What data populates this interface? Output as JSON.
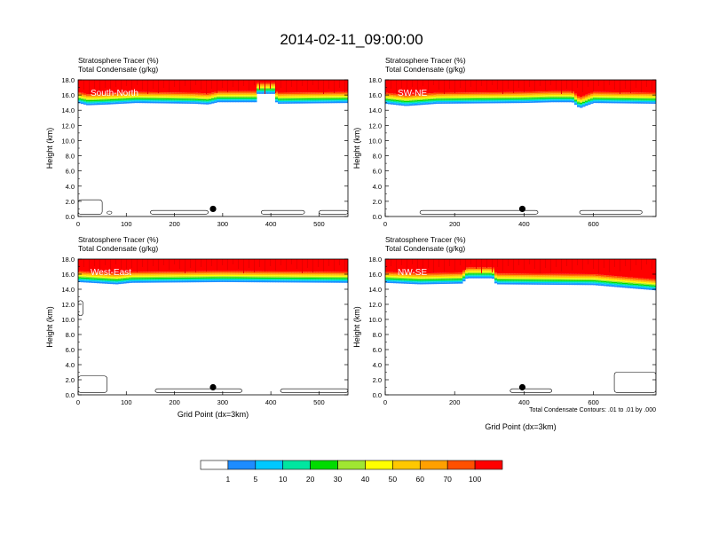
{
  "figure": {
    "title": "2014-02-11_09:00:00",
    "footnote": "Total Condensate Contours: .01 to .01 by .000"
  },
  "colors": {
    "tracer_levels": [
      1,
      5,
      10,
      20,
      30,
      40,
      50,
      60,
      70,
      100
    ],
    "tracer_fill": [
      "#ffffff",
      "#1e8cff",
      "#00c8ff",
      "#00e6a0",
      "#00dc00",
      "#a0e632",
      "#ffff00",
      "#ffc800",
      "#ffa000",
      "#ff5000",
      "#ff0000"
    ]
  },
  "colorbar": {
    "labels": [
      "1",
      "5",
      "10",
      "20",
      "30",
      "40",
      "50",
      "60",
      "70",
      "100"
    ]
  },
  "chart_data": [
    {
      "type": "heatmap",
      "panel": "South-North",
      "title_line1": "Stratosphere Tracer   (%)",
      "title_line2": "Total Condensate   (g/kg)",
      "ylabel": "Height (km)",
      "xlabel": "",
      "xlim": [
        0,
        560
      ],
      "ylim": [
        0,
        18
      ],
      "xticks": [
        0,
        100,
        200,
        300,
        400,
        500
      ],
      "yticks": [
        "0.0",
        "2.0",
        "4.0",
        "6.0",
        "8.0",
        "10.0",
        "12.0",
        "14.0",
        "16.0",
        "18.0"
      ],
      "tropopause_km": [
        [
          0,
          15.3
        ],
        [
          20,
          15.0
        ],
        [
          60,
          15.1
        ],
        [
          120,
          15.3
        ],
        [
          240,
          15.2
        ],
        [
          270,
          15.1
        ],
        [
          290,
          15.4
        ],
        [
          370,
          15.4
        ],
        [
          372,
          16.5
        ],
        [
          410,
          16.5
        ],
        [
          412,
          15.2
        ],
        [
          560,
          15.3
        ]
      ],
      "marker": {
        "x": 280,
        "y": 1.0
      },
      "condensate_contours": [
        {
          "x0": 0,
          "x1": 50,
          "y0": 0.3,
          "y1": 2.2
        },
        {
          "x0": 60,
          "x1": 70,
          "y0": 0.3,
          "y1": 0.7
        },
        {
          "x0": 150,
          "x1": 270,
          "y0": 0.3,
          "y1": 0.8
        },
        {
          "x0": 380,
          "x1": 470,
          "y0": 0.3,
          "y1": 0.8
        },
        {
          "x0": 500,
          "x1": 560,
          "y0": 0.3,
          "y1": 0.8
        }
      ]
    },
    {
      "type": "heatmap",
      "panel": "SW-NE",
      "title_line1": "Stratosphere Tracer   (%)",
      "title_line2": "Total Condensate   (g/kg)",
      "ylabel": "Height (km)",
      "xlabel": "",
      "xlim": [
        0,
        780
      ],
      "ylim": [
        0,
        18
      ],
      "xticks": [
        0,
        200,
        400,
        600
      ],
      "yticks": [
        "0.0",
        "2.0",
        "4.0",
        "6.0",
        "8.0",
        "10.0",
        "12.0",
        "14.0",
        "16.0",
        "18.0"
      ],
      "tropopause_km": [
        [
          0,
          15.2
        ],
        [
          60,
          14.9
        ],
        [
          150,
          15.2
        ],
        [
          400,
          15.3
        ],
        [
          480,
          15.4
        ],
        [
          540,
          15.4
        ],
        [
          560,
          14.6
        ],
        [
          600,
          15.3
        ],
        [
          780,
          15.2
        ]
      ],
      "marker": {
        "x": 395,
        "y": 1.0
      },
      "condensate_contours": [
        {
          "x0": 100,
          "x1": 440,
          "y0": 0.3,
          "y1": 0.8
        },
        {
          "x0": 560,
          "x1": 740,
          "y0": 0.3,
          "y1": 0.8
        }
      ]
    },
    {
      "type": "heatmap",
      "panel": "West-East",
      "title_line1": "Stratosphere Tracer   (%)",
      "title_line2": "Total Condensate   (g/kg)",
      "ylabel": "Height (km)",
      "xlabel": "Grid Point (dx=3km)",
      "xlim": [
        0,
        560
      ],
      "ylim": [
        0,
        18
      ],
      "xticks": [
        0,
        100,
        200,
        300,
        400,
        500
      ],
      "yticks": [
        "0.0",
        "2.0",
        "4.0",
        "6.0",
        "8.0",
        "10.0",
        "12.0",
        "14.0",
        "16.0",
        "18.0"
      ],
      "tropopause_km": [
        [
          0,
          15.3
        ],
        [
          80,
          15.0
        ],
        [
          110,
          15.2
        ],
        [
          300,
          15.3
        ],
        [
          560,
          15.2
        ]
      ],
      "marker": {
        "x": 280,
        "y": 1.0
      },
      "condensate_contours": [
        {
          "x0": 0,
          "x1": 10,
          "y0": 10.5,
          "y1": 12.5
        },
        {
          "x0": 0,
          "x1": 60,
          "y0": 0.3,
          "y1": 2.5
        },
        {
          "x0": 160,
          "x1": 340,
          "y0": 0.3,
          "y1": 0.8
        },
        {
          "x0": 420,
          "x1": 560,
          "y0": 0.3,
          "y1": 0.8
        }
      ]
    },
    {
      "type": "heatmap",
      "panel": "NW-SE",
      "title_line1": "Stratosphere Tracer   (%)",
      "title_line2": "Total Condensate   (g/kg)",
      "ylabel": "Height (km)",
      "xlabel": "Grid Point (dx=3km)",
      "xlim": [
        0,
        780
      ],
      "ylim": [
        0,
        18
      ],
      "xticks": [
        0,
        200,
        400,
        600
      ],
      "yticks": [
        "0.0",
        "2.0",
        "4.0",
        "6.0",
        "8.0",
        "10.0",
        "12.0",
        "14.0",
        "16.0",
        "18.0"
      ],
      "tropopause_km": [
        [
          0,
          15.2
        ],
        [
          100,
          15.0
        ],
        [
          220,
          15.1
        ],
        [
          235,
          15.8
        ],
        [
          310,
          15.8
        ],
        [
          320,
          15.0
        ],
        [
          600,
          14.9
        ],
        [
          700,
          14.5
        ],
        [
          780,
          14.2
        ]
      ],
      "marker": {
        "x": 395,
        "y": 1.0
      },
      "condensate_contours": [
        {
          "x0": 360,
          "x1": 480,
          "y0": 0.3,
          "y1": 0.8
        },
        {
          "x0": 660,
          "x1": 780,
          "y0": 0.3,
          "y1": 3.0
        }
      ]
    }
  ]
}
